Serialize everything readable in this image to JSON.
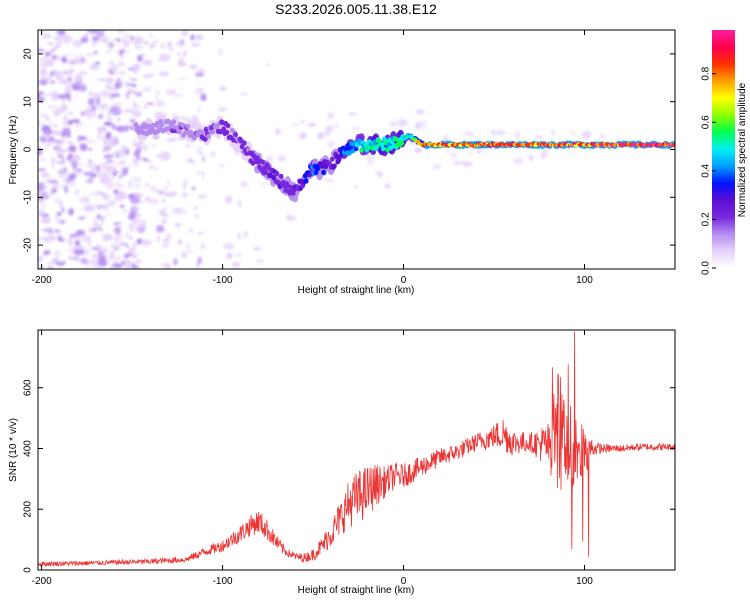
{
  "figure_title": "S233.2026.005.11.38.E12",
  "chart_data": [
    {
      "type": "heatmap",
      "name": "spectrogram",
      "xlabel": "Height of straight line (km)",
      "ylabel": "Frequency (Hz)",
      "xlim": [
        -202,
        150
      ],
      "ylim": [
        -25,
        25
      ],
      "xticks": [
        -200,
        -100,
        0,
        100
      ],
      "yticks": [
        20,
        10,
        0,
        -10,
        -20
      ],
      "colorbar": {
        "label": "Normalized spectral amplitude",
        "range": [
          0,
          0.98
        ],
        "ticks": [
          "0.0",
          "0.2",
          "0.4",
          "0.6",
          "0.8"
        ],
        "colormap": [
          "#ffffff",
          "#e6d2fa",
          "#b48cf0",
          "#7828dc",
          "#5a0fd2",
          "#0014ff",
          "#00a0ff",
          "#00f0f0",
          "#00ff50",
          "#90ff00",
          "#ffff00",
          "#ffa000",
          "#ff3000",
          "#ff0050",
          "#ff20a0"
        ]
      },
      "ridge": {
        "description": "dominant frequency (Hz) vs height (km)",
        "x": [
          -145,
          -130,
          -120,
          -110,
          -100,
          -90,
          -80,
          -70,
          -60,
          -55,
          -50,
          -45,
          -40,
          -35,
          -30,
          -25,
          -20,
          -10,
          0,
          3,
          10,
          20,
          40,
          60,
          80,
          100,
          120,
          150
        ],
        "y": [
          4,
          5,
          4,
          3,
          5,
          1,
          -3,
          -6,
          -9,
          -6,
          -4,
          -4,
          -3,
          -1,
          0,
          1,
          1,
          1,
          2,
          3,
          1,
          1,
          1,
          1,
          1,
          1,
          1,
          1
        ],
        "amplitude": [
          0.15,
          0.17,
          0.18,
          0.19,
          0.2,
          0.22,
          0.24,
          0.25,
          0.24,
          0.3,
          0.4,
          0.35,
          0.25,
          0.35,
          0.45,
          0.5,
          0.55,
          0.55,
          0.55,
          0.58,
          0.85,
          0.9,
          0.9,
          0.92,
          0.88,
          0.92,
          0.96,
          0.96
        ]
      }
    },
    {
      "type": "line",
      "name": "snr",
      "xlabel": "Height of straight line (km)",
      "ylabel": "SNR (10 * v/v)",
      "xlim": [
        -202,
        150
      ],
      "ylim": [
        0,
        790
      ],
      "xticks": [
        -200,
        -100,
        0,
        100
      ],
      "yticks": [
        0,
        200,
        400,
        600
      ],
      "series": [
        {
          "name": "SNR",
          "color": "#ee3333",
          "x": [
            -202,
            -180,
            -160,
            -140,
            -120,
            -110,
            -100,
            -95,
            -90,
            -85,
            -80,
            -75,
            -70,
            -65,
            -60,
            -55,
            -50,
            -45,
            -40,
            -35,
            -30,
            -25,
            -20,
            -15,
            -10,
            -5,
            0,
            10,
            20,
            30,
            40,
            50,
            55,
            60,
            70,
            80,
            85,
            90,
            95,
            100,
            105,
            110,
            120,
            130,
            140,
            150
          ],
          "y": [
            20,
            22,
            25,
            28,
            35,
            60,
            80,
            100,
            120,
            145,
            160,
            130,
            90,
            60,
            45,
            40,
            50,
            80,
            120,
            170,
            220,
            240,
            260,
            280,
            290,
            310,
            310,
            340,
            370,
            390,
            420,
            440,
            450,
            420,
            420,
            410,
            460,
            430,
            380,
            400,
            400,
            400,
            400,
            405,
            405,
            405
          ],
          "noise": [
            8,
            8,
            8,
            9,
            10,
            15,
            20,
            25,
            30,
            35,
            40,
            35,
            25,
            15,
            12,
            15,
            20,
            30,
            45,
            60,
            80,
            90,
            85,
            70,
            50,
            45,
            40,
            35,
            30,
            28,
            30,
            40,
            60,
            45,
            30,
            80,
            200,
            160,
            120,
            100,
            25,
            15,
            12,
            12,
            12,
            12
          ]
        }
      ]
    }
  ]
}
